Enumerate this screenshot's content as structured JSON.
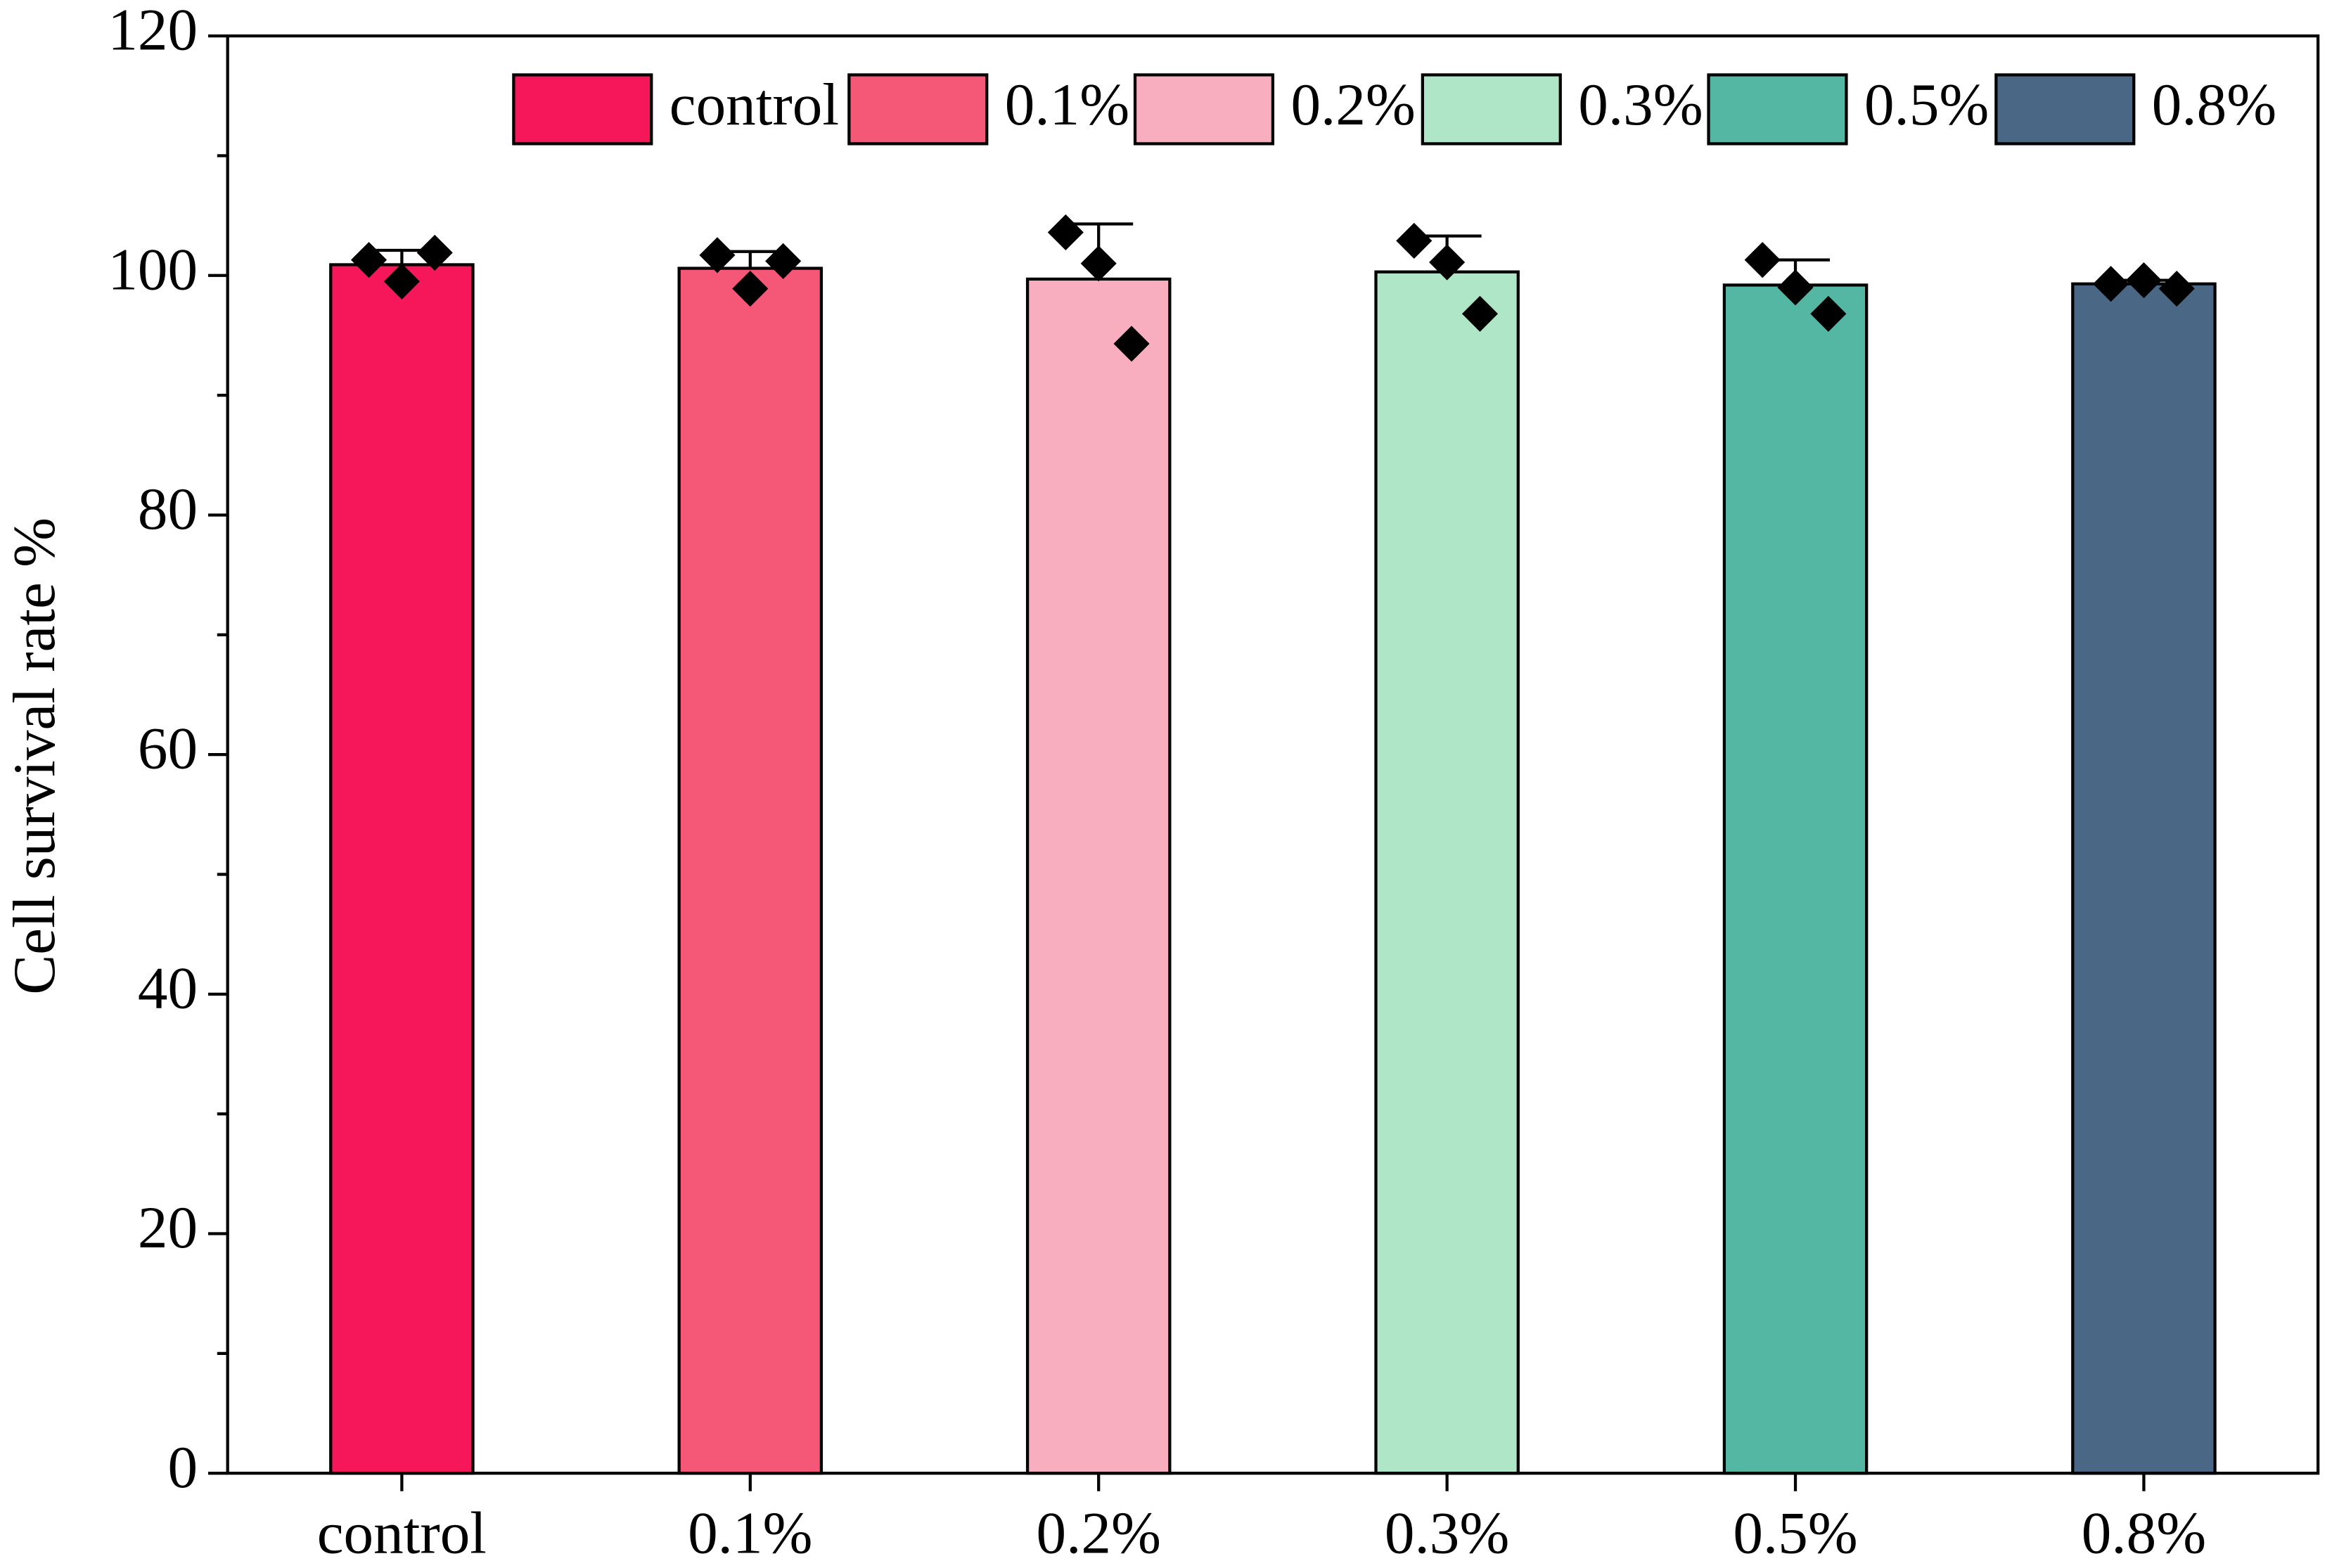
{
  "chart_data": {
    "type": "bar",
    "y_label": "Cell survival rate %",
    "categories": [
      "control",
      "0.1%",
      "0.2%",
      "0.3%",
      "0.5%",
      "0.8%"
    ],
    "values": [
      100.9,
      100.6,
      99.7,
      100.3,
      99.2,
      99.3
    ],
    "errors": [
      1.2,
      1.4,
      4.6,
      3.0,
      2.1,
      0.3
    ],
    "points": [
      [
        101.3,
        99.5,
        101.9
      ],
      [
        101.7,
        98.9,
        101.2
      ],
      [
        103.6,
        101.0,
        94.3
      ],
      [
        102.9,
        101.1,
        96.8
      ],
      [
        101.3,
        99.0,
        96.8
      ],
      [
        99.3,
        99.6,
        98.9
      ]
    ],
    "colors": [
      "#f5175a",
      "#f55777",
      "#f9aec0",
      "#b0e6c8",
      "#54b7a3",
      "#4a6885"
    ],
    "ylim": [
      0,
      120
    ],
    "yticks": [
      0,
      20,
      40,
      60,
      80,
      100,
      120
    ],
    "legend": "top",
    "grid": false
  }
}
